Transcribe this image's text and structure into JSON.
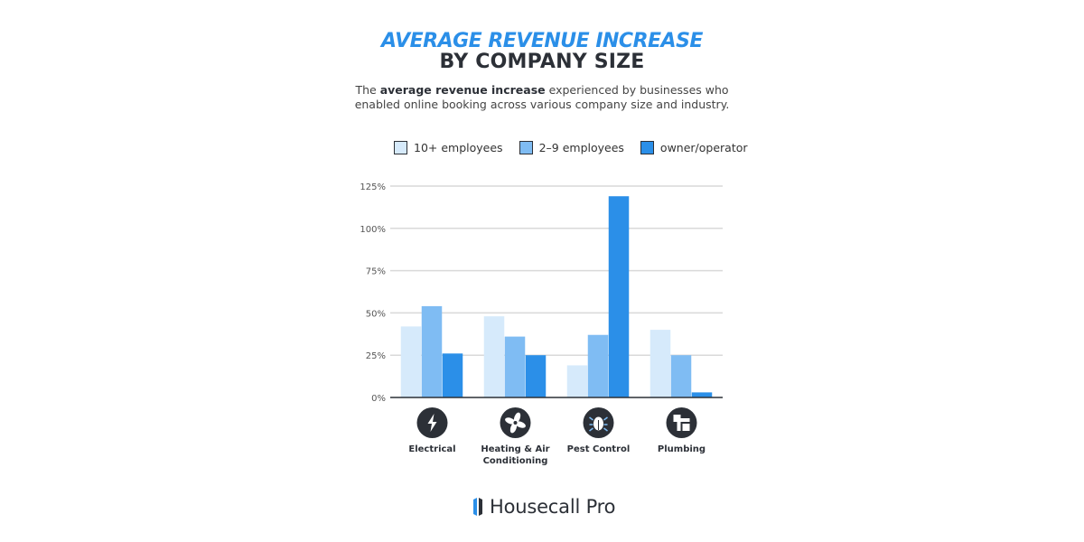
{
  "header": {
    "title_line1": "AVERAGE REVENUE INCREASE",
    "title_line2": "BY COMPANY SIZE",
    "subtitle_pre": "The ",
    "subtitle_bold": "average revenue increase",
    "subtitle_post": " experienced by businesses who",
    "subtitle_line2": "enabled online booking across various company size and industry."
  },
  "legend": [
    {
      "label": "10+ employees",
      "color": "#d6eafb"
    },
    {
      "label": "2–9 employees",
      "color": "#7fbcf3"
    },
    {
      "label": "owner/operator",
      "color": "#2b8fe8"
    }
  ],
  "chart_data": {
    "type": "bar",
    "categories": [
      "Electrical",
      "Heating & Air Conditioning",
      "Pest Control",
      "Plumbing"
    ],
    "category_labels": [
      [
        "Electrical"
      ],
      [
        "Heating & Air",
        "Conditioning"
      ],
      [
        "Pest Control"
      ],
      [
        "Plumbing"
      ]
    ],
    "category_icons": [
      "lightning-bolt-icon",
      "fan-icon",
      "bug-icon",
      "pipe-icon"
    ],
    "series": [
      {
        "name": "10+ employees",
        "values": [
          42,
          48,
          19,
          40
        ]
      },
      {
        "name": "2–9 employees",
        "values": [
          54,
          36,
          37,
          25
        ]
      },
      {
        "name": "owner/operator",
        "values": [
          26,
          25,
          119,
          3
        ]
      }
    ],
    "ylim": [
      0,
      125
    ],
    "yticks": [
      0,
      25,
      50,
      75,
      100,
      125
    ],
    "ytick_labels": [
      "0%",
      "25%",
      "50%",
      "75%",
      "100%",
      "125%"
    ],
    "grid": true,
    "legend_position": "top"
  },
  "brand": {
    "name": "Housecall Pro",
    "icon": "housecall-logo-icon"
  },
  "colors": {
    "accent": "#2b8fe8",
    "dark": "#2c3037"
  }
}
